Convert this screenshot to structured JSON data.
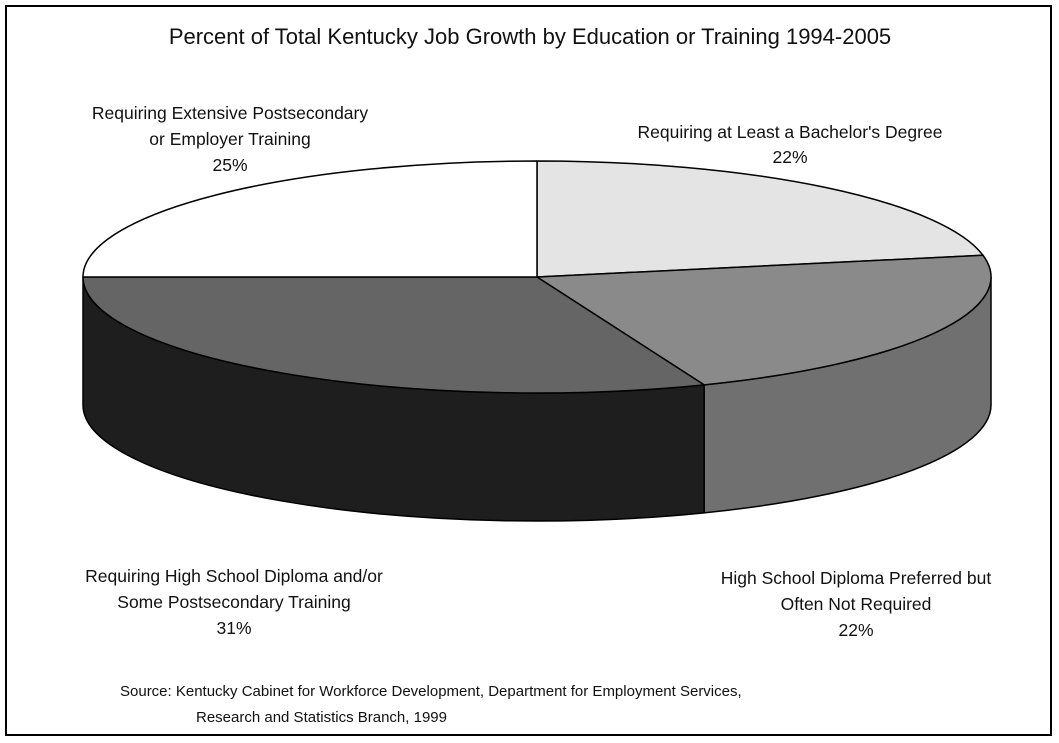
{
  "chart_data": {
    "type": "pie",
    "title": "Percent of Total Kentucky Job Growth by Education or Training 1994-2005",
    "slices": [
      {
        "label_lines": [
          "Requiring at Least a Bachelor's Degree"
        ],
        "percent_label": "22%",
        "value": 22,
        "color": "#e4e4e4"
      },
      {
        "label_lines": [
          "High School Diploma Preferred but",
          "Often Not Required"
        ],
        "percent_label": "22%",
        "value": 22,
        "color": "#8a8a8a"
      },
      {
        "label_lines": [
          "Requiring High School Diploma and/or",
          "Some Postsecondary Training"
        ],
        "percent_label": "31%",
        "value": 31,
        "color": "#656565"
      },
      {
        "label_lines": [
          "Requiring Extensive Postsecondary",
          "or Employer Training"
        ],
        "percent_label": "25%",
        "value": 25,
        "color": "#ffffff"
      }
    ],
    "source_lines": [
      "Source:   Kentucky Cabinet for Workforce Development, Department for Employment Services,",
      "Research and Statistics Branch, 1999"
    ]
  }
}
